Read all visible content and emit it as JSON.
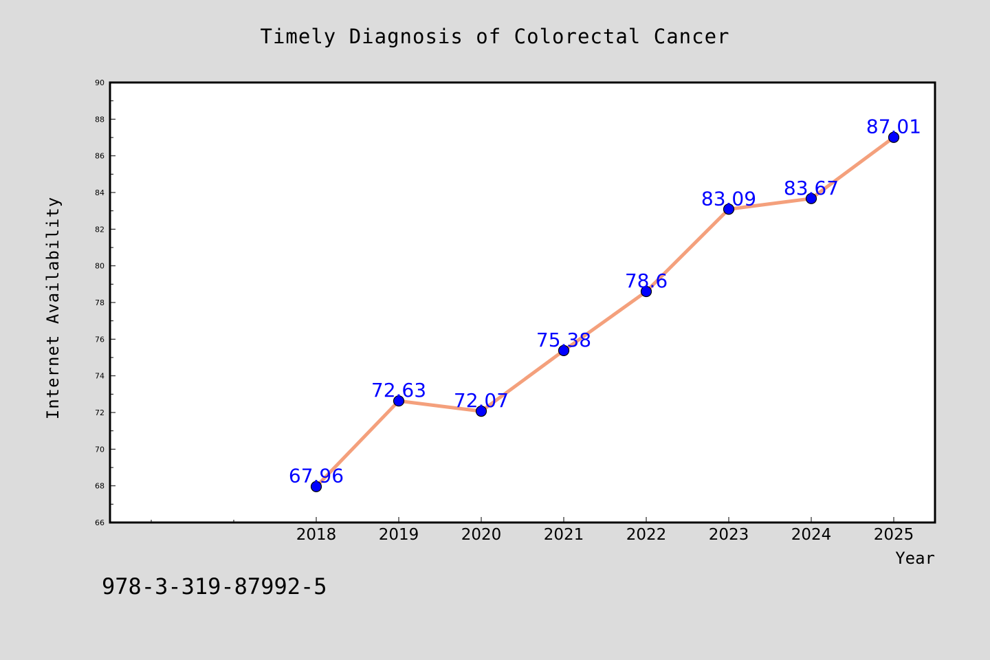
{
  "footer_text": "978-3-319-87992-5",
  "colors": {
    "background": "#dcdcdc",
    "plot_background": "#ffffff",
    "line": "#f4a07c",
    "marker": "#0000ff",
    "data_label": "#0000ff"
  },
  "chart_data": {
    "type": "line",
    "title": "Timely Diagnosis of Colorectal Cancer",
    "xlabel": "Year",
    "ylabel": "Internet Availability",
    "x": [
      "2018",
      "2019",
      "2020",
      "2021",
      "2022",
      "2023",
      "2024",
      "2025"
    ],
    "series": [
      {
        "values": [
          67.96,
          72.63,
          72.07,
          75.38,
          78.6,
          83.09,
          83.67,
          87.01
        ]
      }
    ],
    "data_labels": [
      "67.96",
      "72.63",
      "72.07",
      "75.38",
      "78.6",
      "83.09",
      "83.67",
      "87.01"
    ],
    "ylim": [
      66,
      90
    ],
    "yticks": [
      "66",
      "68",
      "70",
      "72",
      "74",
      "76",
      "78",
      "80",
      "82",
      "84",
      "86",
      "88",
      "90"
    ],
    "grid": false,
    "legend": "none",
    "markers": "circle"
  }
}
